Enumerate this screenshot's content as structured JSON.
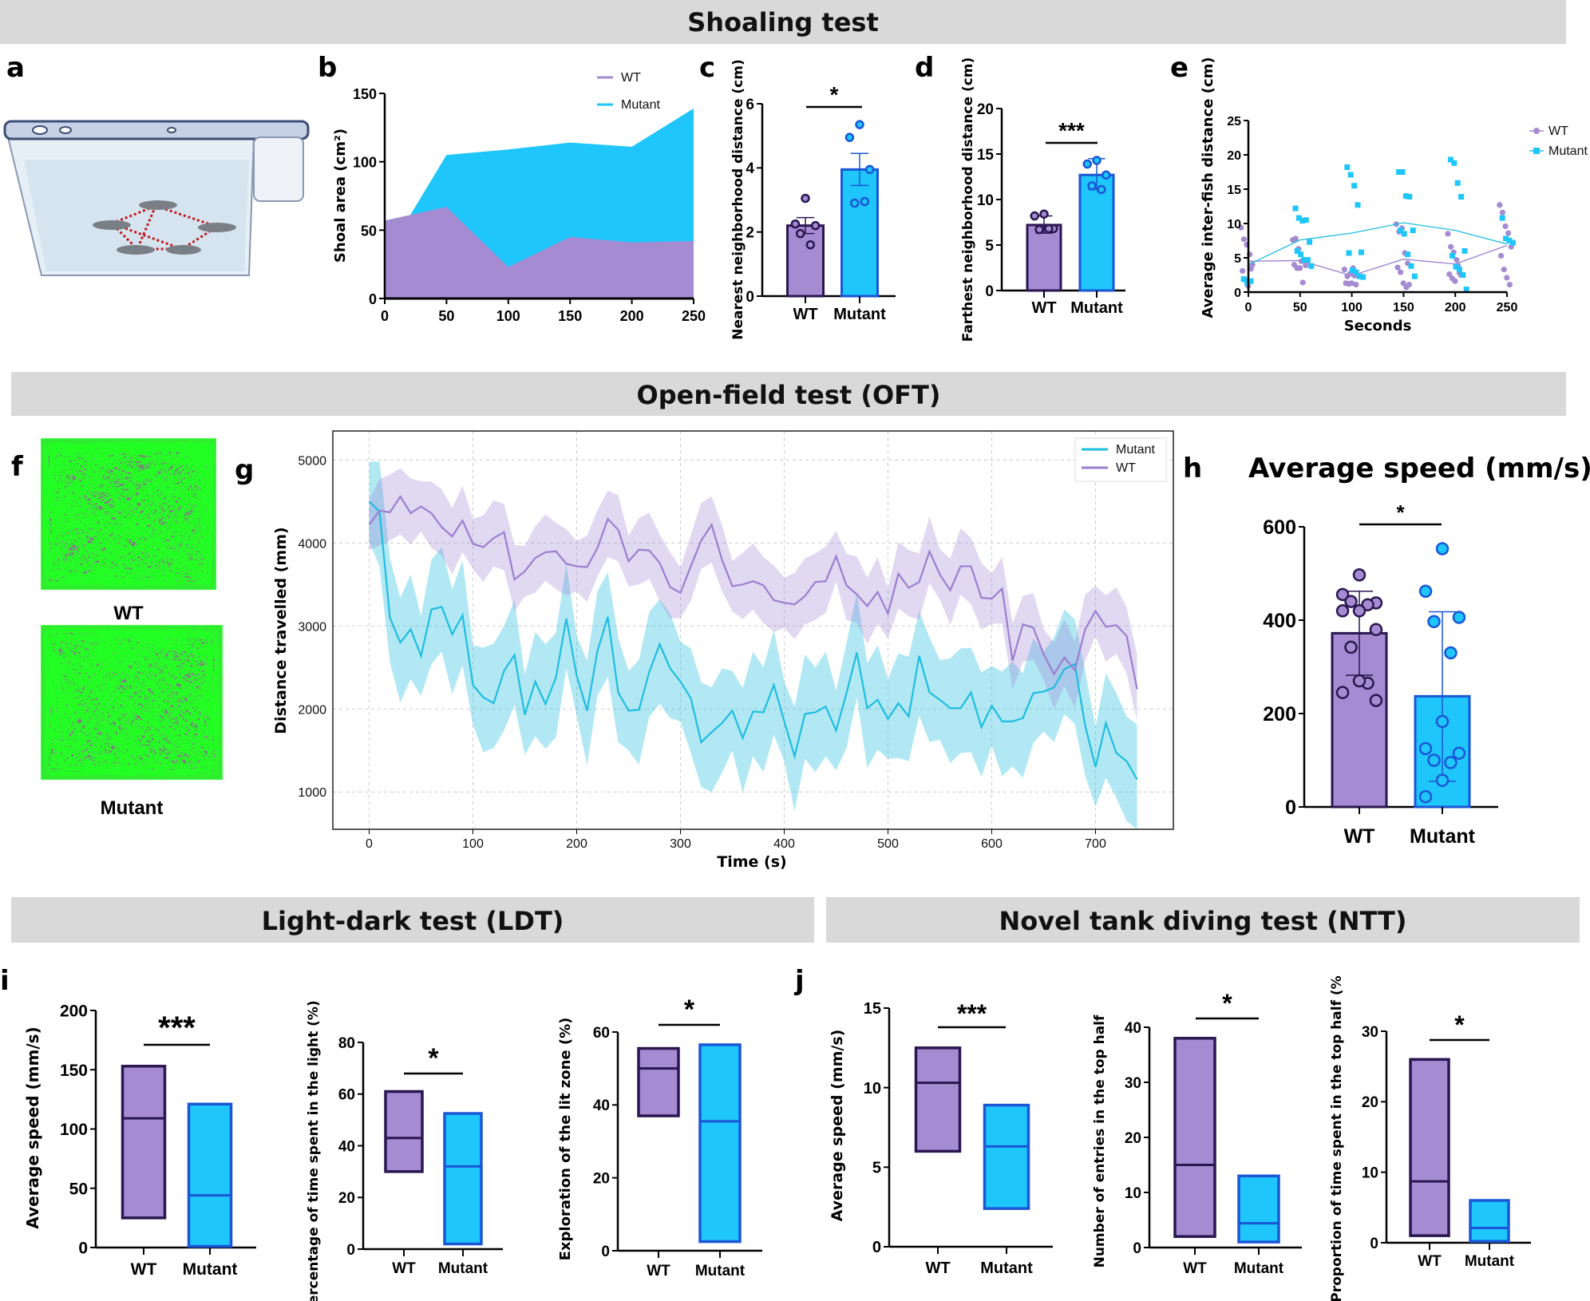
{
  "sections": {
    "shoaling": "Shoaling test",
    "oft": "Open-field test (OFT)",
    "ldt": "Light-dark test (LDT)",
    "ntt": "Novel tank diving test (NTT)"
  },
  "panel_labels": {
    "a": "a",
    "b": "b",
    "c": "c",
    "d": "d",
    "e": "e",
    "f": "f",
    "g": "g",
    "h": "h",
    "i": "i",
    "j": "j"
  },
  "colors": {
    "wt_fill": "#a58bd2",
    "wt_stroke": "#2a1650",
    "mutant_fill": "#1ec6fb",
    "mutant_stroke": "#1a56d6",
    "wt_line": "#9a7fd0",
    "mutant_line": "#1fbde0",
    "section_header": "#d9d9d9",
    "track_green": "#22ff22"
  },
  "panel_f": {
    "labels": [
      "WT",
      "Mutant"
    ]
  },
  "chart_data": [
    {
      "panel": "b",
      "type": "area",
      "x": [
        0,
        50,
        100,
        150,
        200,
        250
      ],
      "series": [
        {
          "name": "WT",
          "values": [
            57,
            67,
            23,
            45,
            41,
            42
          ]
        },
        {
          "name": "Mutant",
          "values": [
            30,
            105,
            109,
            114,
            111,
            139
          ]
        }
      ],
      "xlim": [
        0,
        250
      ],
      "ylim": [
        0,
        150
      ],
      "xticks": [
        0,
        50,
        100,
        150,
        200,
        250
      ],
      "yticks": [
        0,
        50,
        100,
        150
      ],
      "ylabel": "Shoal area (cm²)",
      "legend": "top-right"
    },
    {
      "panel": "c",
      "type": "bar",
      "ylabel": "Nearest neighborhood distance (cm)",
      "ylim": [
        0,
        6
      ],
      "yticks": [
        0,
        2,
        4,
        6
      ],
      "significance": "*",
      "groups": [
        {
          "label": "WT",
          "mean": 2.2,
          "error": [
            1.95,
            2.45
          ],
          "points": [
            3.05,
            2.25,
            2.2,
            1.95,
            1.6
          ]
        },
        {
          "label": "Mutant",
          "mean": 3.95,
          "error": [
            3.45,
            4.45
          ],
          "points": [
            5.35,
            4.95,
            3.95,
            2.9,
            2.95
          ]
        }
      ]
    },
    {
      "panel": "d",
      "type": "bar",
      "ylabel": "Farthest neighborhood distance (cm)",
      "ylim": [
        0,
        20
      ],
      "yticks": [
        0,
        5,
        10,
        15,
        20
      ],
      "significance": "***",
      "groups": [
        {
          "label": "WT",
          "mean": 7.2,
          "error": [
            6.3,
            8.2
          ],
          "points": [
            8.4,
            8.2,
            6.8,
            6.7,
            6.8
          ]
        },
        {
          "label": "Mutant",
          "mean": 12.7,
          "error": [
            11.1,
            14.5
          ],
          "points": [
            14.3,
            13.9,
            12.7,
            11.5,
            11.1
          ]
        }
      ]
    },
    {
      "panel": "e",
      "type": "scatter",
      "xlabel": "Seconds",
      "ylabel": "Average inter-fish distance (cm)",
      "x": [
        0,
        50,
        100,
        150,
        200,
        250
      ],
      "xlim": [
        0,
        250
      ],
      "ylim": [
        0,
        25
      ],
      "xticks": [
        0,
        50,
        100,
        150,
        200,
        250
      ],
      "yticks": [
        0,
        5,
        10,
        15,
        20,
        25
      ],
      "legend": "top-right",
      "series": [
        {
          "name": "WT",
          "marker": "circle",
          "mean": [
            4.5,
            4.6,
            2.4,
            4.8,
            4.1,
            6.8
          ],
          "points": [
            [
              9.4,
              7.7,
              6.9,
              5.5,
              4.0,
              3.1,
              1.8,
              0.9,
              3.4
            ],
            [
              7.6,
              7.8,
              6.3,
              4.5,
              4.6,
              4.0,
              3.5,
              3.5,
              1.4,
              3.9
            ],
            [
              3.3,
              2.3,
              2.7,
              3.5,
              1.1,
              1.3,
              1.2,
              1.3,
              2.4
            ],
            [
              9.9,
              8.8,
              9.3,
              5.7,
              4.2,
              3.6,
              2.9,
              1.3,
              0.7,
              1.1
            ],
            [
              8.5,
              6.6,
              5.8,
              4.7,
              2.8,
              2.6,
              2.0,
              1.6,
              3.9,
              2.5
            ],
            [
              12.7,
              11.6,
              9.6,
              8.6,
              6.6,
              5.3,
              3.3,
              2.1,
              1.1
            ]
          ]
        },
        {
          "name": "Mutant",
          "marker": "square",
          "mean": [
            4.0,
            7.6,
            8.6,
            10.1,
            9.0,
            7.0
          ],
          "points": [
            [
              1.9,
              1.3,
              1.6
            ],
            [
              12.2,
              10.8,
              10.4,
              10.5,
              7.3,
              6.0,
              5.5,
              4.7,
              4.7,
              3.8
            ],
            [
              18.2,
              17.1,
              15.5,
              12.7,
              5.8,
              5.7,
              3.2,
              2.9,
              2.3,
              2.2
            ],
            [
              17.5,
              17.5,
              14.0,
              13.9,
              9.0,
              9.0,
              8.5,
              5.5,
              3.8,
              2.3
            ],
            [
              19.3,
              18.8,
              15.9,
              13.9,
              6.0,
              5.3,
              3.7,
              3.3,
              2.5,
              0.4
            ],
            [
              10.8,
              7.8,
              7.5,
              7.2
            ]
          ]
        }
      ]
    },
    {
      "panel": "g",
      "type": "line",
      "xlabel": "Time (s)",
      "ylabel": "Distance travelled (mm)",
      "xlim": [
        -35,
        775
      ],
      "ylim": [
        550,
        5350
      ],
      "grid": true,
      "legend": "top-right",
      "xticks": [
        0,
        100,
        200,
        300,
        400,
        500,
        600,
        700
      ],
      "yticks": [
        1000,
        2000,
        3000,
        4000,
        5000
      ],
      "x": [
        0,
        10,
        20,
        30,
        40,
        50,
        60,
        70,
        80,
        90,
        100,
        110,
        120,
        130,
        140,
        150,
        160,
        170,
        180,
        190,
        200,
        210,
        220,
        230,
        240,
        250,
        260,
        270,
        280,
        290,
        300,
        310,
        320,
        330,
        340,
        350,
        360,
        370,
        380,
        390,
        400,
        410,
        420,
        430,
        440,
        450,
        460,
        470,
        480,
        490,
        500,
        510,
        520,
        530,
        540,
        550,
        560,
        570,
        580,
        590,
        600,
        610,
        620,
        630,
        640,
        650,
        660,
        670,
        680,
        690,
        700,
        710,
        720,
        730,
        740
      ],
      "series": [
        {
          "name": "Mutant",
          "band_halfwidth": 600,
          "values": [
            4500,
            4380,
            3100,
            2800,
            2960,
            2640,
            3200,
            3230,
            2900,
            3130,
            2290,
            2140,
            2070,
            2460,
            2650,
            1930,
            2330,
            2060,
            2380,
            3090,
            2400,
            1980,
            2700,
            3110,
            2200,
            1980,
            1990,
            2450,
            2780,
            2490,
            2330,
            2130,
            1600,
            1720,
            1830,
            1980,
            1650,
            1970,
            1960,
            2290,
            1850,
            1430,
            1940,
            1960,
            2030,
            1740,
            2190,
            2680,
            2010,
            2110,
            1880,
            2070,
            1910,
            2640,
            2200,
            2110,
            2010,
            2010,
            2200,
            1780,
            2040,
            1850,
            1850,
            1890,
            2190,
            2210,
            2260,
            2480,
            2540,
            1800,
            1300,
            1830,
            1470,
            1370,
            1150
          ]
        },
        {
          "name": "WT",
          "band_halfwidth": 380,
          "values": [
            4220,
            4390,
            4370,
            4560,
            4360,
            4440,
            4360,
            4190,
            4080,
            4270,
            3990,
            3950,
            4060,
            4130,
            3560,
            3660,
            3820,
            3890,
            3900,
            3750,
            3720,
            3710,
            3940,
            4290,
            4160,
            3780,
            3920,
            3910,
            3760,
            3470,
            3400,
            3720,
            4030,
            4220,
            3800,
            3480,
            3500,
            3540,
            3490,
            3310,
            3280,
            3260,
            3360,
            3530,
            3540,
            3840,
            3490,
            3380,
            3240,
            3410,
            3150,
            3630,
            3460,
            3530,
            3900,
            3620,
            3430,
            3720,
            3720,
            3340,
            3330,
            3450,
            2580,
            3020,
            2980,
            2660,
            2420,
            2620,
            2470,
            2960,
            3180,
            2990,
            3010,
            2880,
            2240
          ]
        }
      ]
    },
    {
      "panel": "h",
      "type": "bar",
      "title": "Average speed (mm/s)",
      "ylim": [
        0,
        600
      ],
      "yticks": [
        0,
        200,
        400,
        600
      ],
      "significance": "*",
      "groups": [
        {
          "label": "WT",
          "mean": 372,
          "error": [
            282,
            462
          ],
          "points": [
            497,
            455,
            437,
            440,
            433,
            420,
            420,
            380,
            342,
            265,
            270,
            245,
            228
          ]
        },
        {
          "label": "Mutant",
          "mean": 237,
          "error": [
            55,
            418
          ],
          "points": [
            553,
            462,
            406,
            397,
            330,
            183,
            125,
            115,
            100,
            95,
            57,
            22
          ]
        }
      ]
    },
    {
      "panel": "i",
      "type": "floating_bar",
      "ylabel": "Average speed (mm/s)",
      "ylim": [
        0,
        200
      ],
      "yticks": [
        0,
        50,
        100,
        150,
        200
      ],
      "significance": "***",
      "groups": [
        {
          "label": "WT",
          "min": 25,
          "max": 153,
          "mean": 109
        },
        {
          "label": "Mutant",
          "min": 1,
          "max": 121,
          "mean": 44
        }
      ]
    },
    {
      "panel": "i",
      "type": "floating_bar",
      "ylabel": "Percentage of time spent in the light (%)",
      "ylim": [
        0,
        80
      ],
      "yticks": [
        0,
        20,
        40,
        60,
        80
      ],
      "significance": "*",
      "groups": [
        {
          "label": "WT",
          "min": 30,
          "max": 61,
          "mean": 43
        },
        {
          "label": "Mutant",
          "min": 2,
          "max": 52.5,
          "mean": 32
        }
      ]
    },
    {
      "panel": "i",
      "type": "floating_bar",
      "ylabel": "Exploration of the lit zone (%)",
      "ylim": [
        0,
        60
      ],
      "yticks": [
        0,
        20,
        40,
        60
      ],
      "significance": "*",
      "groups": [
        {
          "label": "WT",
          "min": 37,
          "max": 55.5,
          "mean": 50
        },
        {
          "label": "Mutant",
          "min": 2.5,
          "max": 56.5,
          "mean": 35.5
        }
      ]
    },
    {
      "panel": "j",
      "type": "floating_bar",
      "ylabel": "Average speed (mm/s)",
      "ylim": [
        0,
        15
      ],
      "yticks": [
        0,
        5,
        10,
        15
      ],
      "significance": "***",
      "groups": [
        {
          "label": "WT",
          "min": 6,
          "max": 12.5,
          "mean": 10.3
        },
        {
          "label": "Mutant",
          "min": 2.4,
          "max": 8.9,
          "mean": 6.3
        }
      ]
    },
    {
      "panel": "j",
      "type": "floating_bar",
      "ylabel": "Number of entries in the top half",
      "ylim": [
        0,
        40
      ],
      "yticks": [
        0,
        10,
        20,
        30,
        40
      ],
      "significance": "*",
      "groups": [
        {
          "label": "WT",
          "min": 2,
          "max": 38,
          "mean": 15
        },
        {
          "label": "Mutant",
          "min": 1,
          "max": 13,
          "mean": 4.4
        }
      ]
    },
    {
      "panel": "j",
      "type": "floating_bar",
      "ylabel": "Proportion of time spent in the top half (%",
      "ylim": [
        0,
        30
      ],
      "yticks": [
        0,
        10,
        20,
        30
      ],
      "significance": "*",
      "groups": [
        {
          "label": "WT",
          "min": 1,
          "max": 26,
          "mean": 8.7
        },
        {
          "label": "Mutant",
          "min": 0.2,
          "max": 6,
          "mean": 2.1
        }
      ]
    }
  ]
}
